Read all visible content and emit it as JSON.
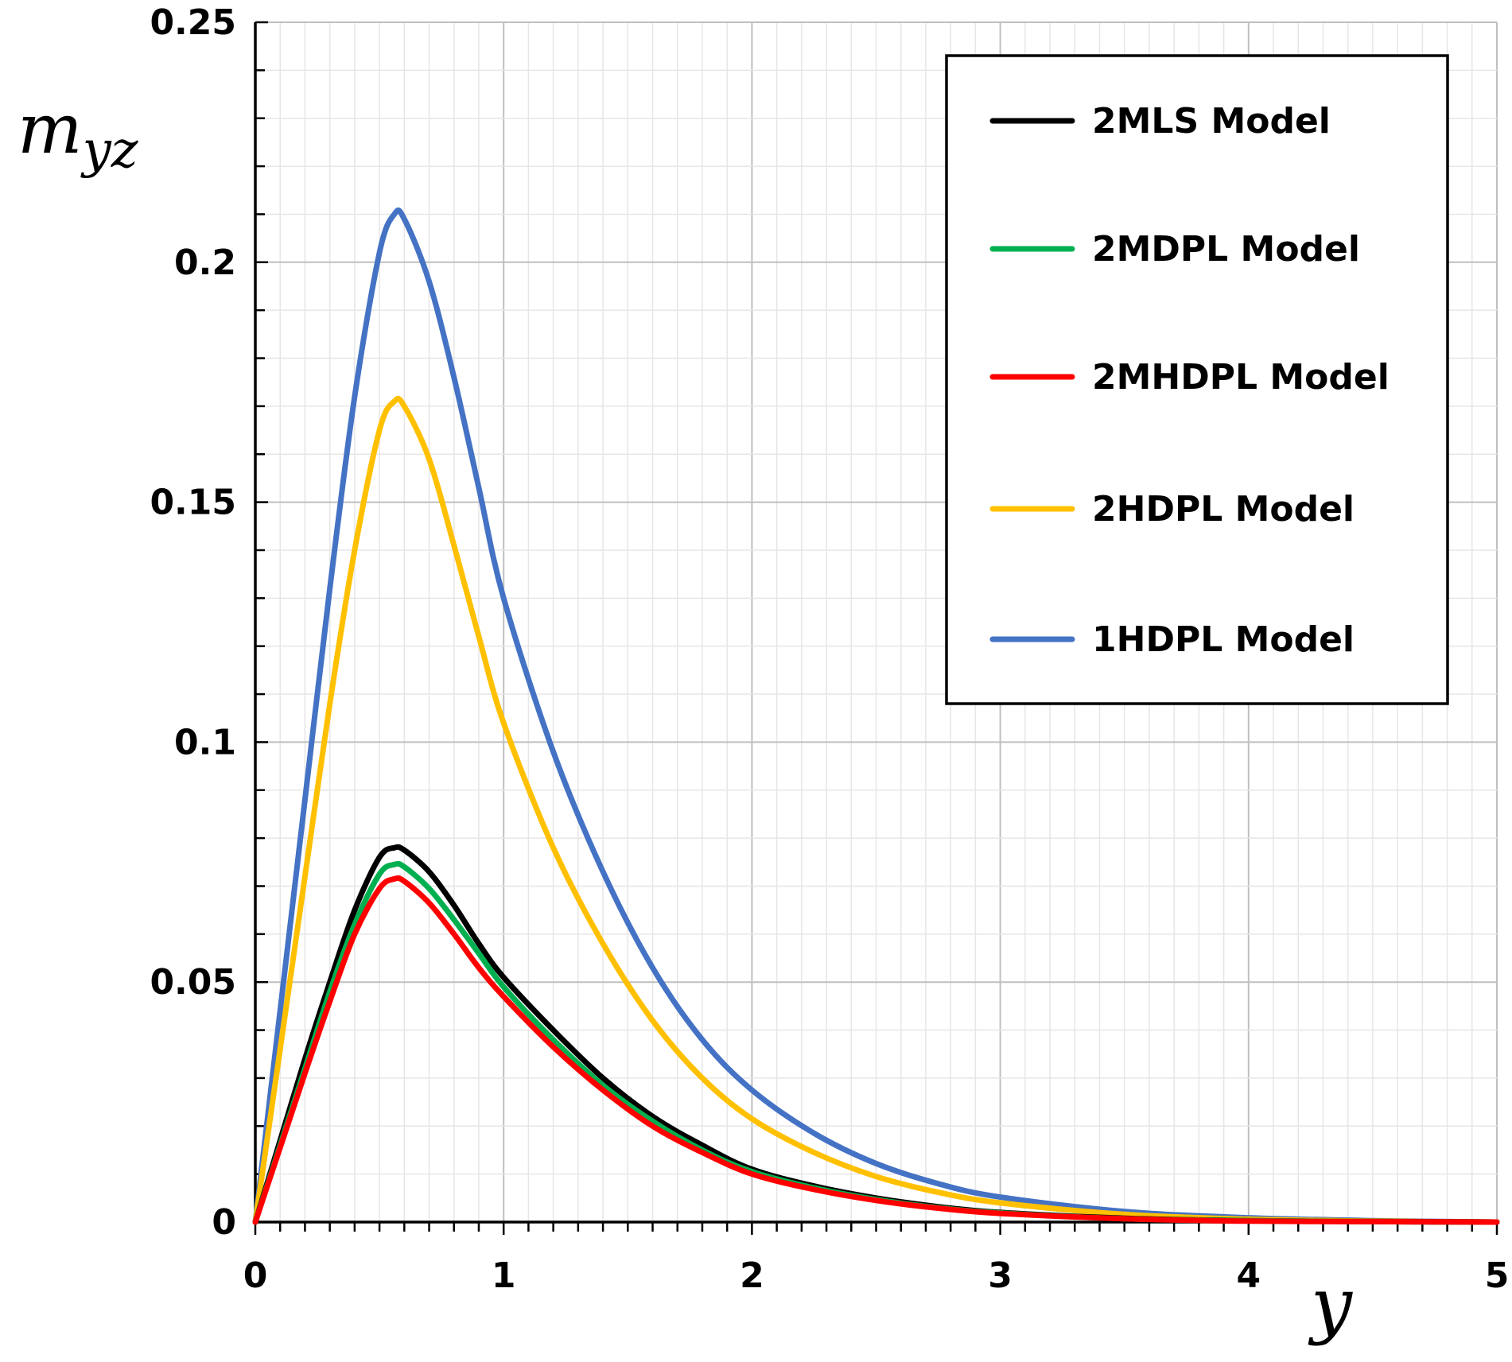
{
  "chart_data": {
    "type": "line",
    "title": "",
    "xlabel": "y",
    "ylabel": "m",
    "ylabel_subscript": "yz",
    "xlim": [
      0,
      5
    ],
    "ylim": [
      0,
      0.25
    ],
    "x_ticks": [
      0,
      1,
      2,
      3,
      4,
      5
    ],
    "x_tick_labels": [
      "0",
      "1",
      "2",
      "3",
      "4",
      "5"
    ],
    "y_ticks": [
      0,
      0.05,
      0.1,
      0.15,
      0.2,
      0.25
    ],
    "y_tick_labels": [
      "0",
      "0.05",
      "0.1",
      "0.15",
      "0.2",
      "0.25"
    ],
    "grid": true,
    "legend_position": "top-right",
    "x": [
      0,
      0.1,
      0.2,
      0.3,
      0.4,
      0.5,
      0.56,
      0.6,
      0.7,
      0.8,
      0.9,
      1.0,
      1.2,
      1.4,
      1.6,
      1.8,
      2.0,
      2.25,
      2.5,
      2.75,
      3.0,
      3.5,
      4.0,
      4.5,
      5.0
    ],
    "series": [
      {
        "name": "2MLS Model",
        "color": "#000000",
        "values": [
          0,
          0.017,
          0.034,
          0.05,
          0.065,
          0.076,
          0.078,
          0.0775,
          0.073,
          0.066,
          0.058,
          0.051,
          0.04,
          0.03,
          0.022,
          0.016,
          0.011,
          0.0075,
          0.005,
          0.0032,
          0.002,
          0.0008,
          0.0003,
          0.0001,
          0.0
        ]
      },
      {
        "name": "2MDPL Model",
        "color": "#00b050",
        "values": [
          0,
          0.016,
          0.032,
          0.048,
          0.062,
          0.0725,
          0.0745,
          0.074,
          0.0695,
          0.063,
          0.056,
          0.049,
          0.038,
          0.0285,
          0.021,
          0.015,
          0.0105,
          0.0071,
          0.0047,
          0.003,
          0.0019,
          0.0007,
          0.0003,
          0.0001,
          0.0
        ]
      },
      {
        "name": "2MHDPL Model",
        "color": "#ff0000",
        "values": [
          0,
          0.0155,
          0.031,
          0.046,
          0.06,
          0.0695,
          0.0715,
          0.071,
          0.0665,
          0.06,
          0.053,
          0.047,
          0.0365,
          0.0275,
          0.02,
          0.0145,
          0.01,
          0.0068,
          0.0045,
          0.0029,
          0.0018,
          0.0007,
          0.0002,
          0.0001,
          0.0
        ]
      },
      {
        "name": "2HDPL Model",
        "color": "#ffc000",
        "values": [
          0,
          0.036,
          0.072,
          0.108,
          0.14,
          0.165,
          0.171,
          0.17,
          0.159,
          0.141,
          0.122,
          0.104,
          0.078,
          0.058,
          0.042,
          0.03,
          0.0215,
          0.0145,
          0.0095,
          0.0062,
          0.004,
          0.0016,
          0.0006,
          0.0002,
          0.0
        ]
      },
      {
        "name": "1HDPL Model",
        "color": "#4472c4",
        "values": [
          0,
          0.044,
          0.088,
          0.132,
          0.172,
          0.202,
          0.21,
          0.209,
          0.196,
          0.176,
          0.153,
          0.13,
          0.098,
          0.073,
          0.053,
          0.038,
          0.0275,
          0.0185,
          0.0122,
          0.008,
          0.0052,
          0.0022,
          0.0009,
          0.0003,
          0.0
        ]
      }
    ]
  }
}
